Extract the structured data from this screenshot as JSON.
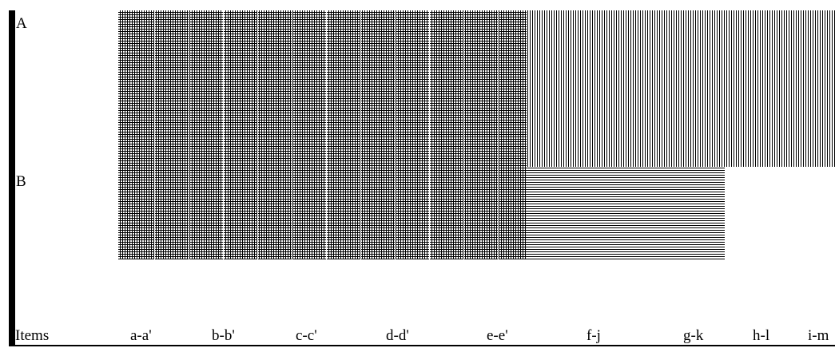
{
  "row_labels": [
    "A",
    "B"
  ],
  "column_header": "Items",
  "columns": [
    "a-a'",
    "b-b'",
    "c-c'",
    "d-d'",
    "e-e'",
    "f-j",
    "g-k",
    "h-l",
    "i-m"
  ],
  "regions": [
    {
      "name": "region-a-ae",
      "row": "A",
      "pattern": "grid"
    },
    {
      "name": "region-b-ae",
      "row": "B",
      "pattern": "grid"
    },
    {
      "name": "region-a-fm",
      "row": "A",
      "pattern": "vertical-lines"
    },
    {
      "name": "region-b-fk",
      "row": "B",
      "pattern": "horizontal-lines"
    }
  ]
}
